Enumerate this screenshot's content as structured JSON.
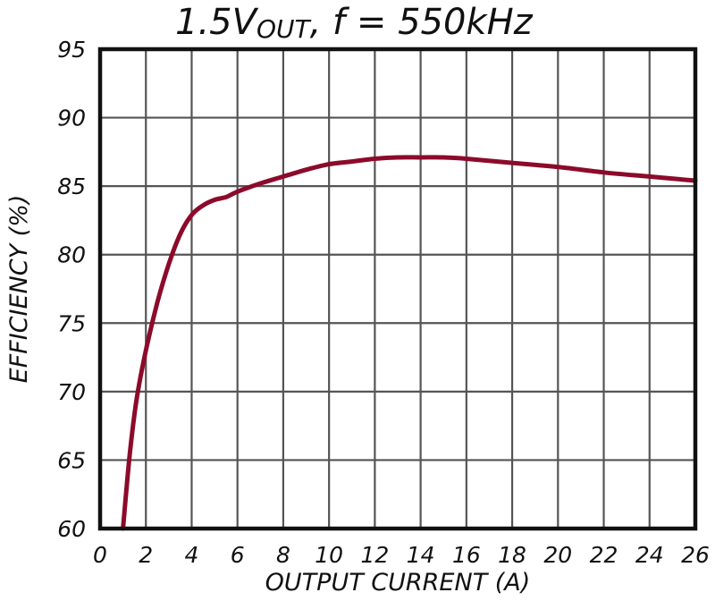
{
  "chart_data": {
    "type": "line",
    "title_main": "1.5V",
    "title_sub": "OUT",
    "title_rest": ", f = 550kHz",
    "xlabel": "OUTPUT CURRENT (A)",
    "ylabel": "EFFICIENCY (%)",
    "xlim": [
      0,
      26
    ],
    "ylim": [
      60,
      95
    ],
    "x_ticks": [
      "0",
      "2",
      "4",
      "6",
      "8",
      "10",
      "12",
      "14",
      "16",
      "18",
      "20",
      "22",
      "24",
      "26"
    ],
    "y_ticks": [
      "60",
      "65",
      "70",
      "75",
      "80",
      "85",
      "90",
      "95"
    ],
    "grid": true,
    "colors": {
      "line": "#8c0a2a",
      "grid": "#555555",
      "frame": "#111111"
    },
    "series": [
      {
        "x": [
          1.0,
          1.3,
          1.6,
          2.0,
          2.5,
          3.0,
          3.5,
          4.0,
          4.5,
          5.0,
          5.5,
          6.0,
          7.0,
          8.0,
          9.0,
          10.0,
          11.0,
          12.0,
          13.0,
          14.0,
          15.0,
          16.0,
          18.0,
          20.0,
          22.0,
          24.0,
          26.0
        ],
        "y": [
          60.0,
          65.5,
          69.5,
          73.0,
          76.5,
          79.3,
          81.5,
          82.9,
          83.6,
          84.0,
          84.2,
          84.6,
          85.2,
          85.7,
          86.2,
          86.6,
          86.8,
          87.0,
          87.1,
          87.1,
          87.1,
          87.0,
          86.7,
          86.4,
          86.0,
          85.7,
          85.4
        ]
      }
    ]
  }
}
